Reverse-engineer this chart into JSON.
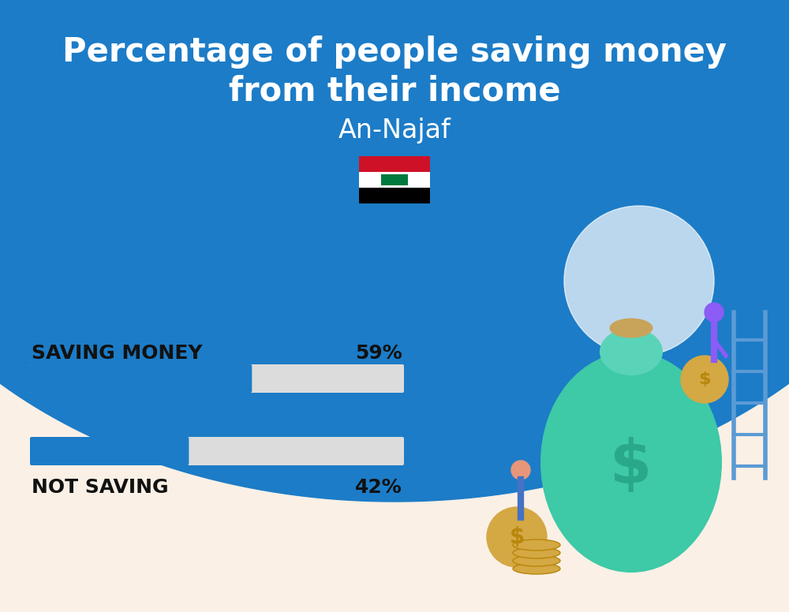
{
  "title_line1": "Percentage of people saving money",
  "title_line2": "from their income",
  "subtitle": "An-Najaf",
  "background_color": "#FAF0E6",
  "header_color": "#1C7CC7",
  "bar_color": "#1C7CC7",
  "bar_bg_color": "#DCDCDC",
  "categories": [
    "SAVING MONEY",
    "NOT SAVING"
  ],
  "values": [
    59,
    42
  ],
  "label_color": "#111111",
  "title_color": "#FFFFFF",
  "subtitle_color": "#FFFFFF",
  "title_fontsize": 30,
  "subtitle_fontsize": 24,
  "label_fontsize": 18,
  "value_fontsize": 18,
  "bar_max": 100,
  "figsize": [
    10.0,
    7.76
  ]
}
